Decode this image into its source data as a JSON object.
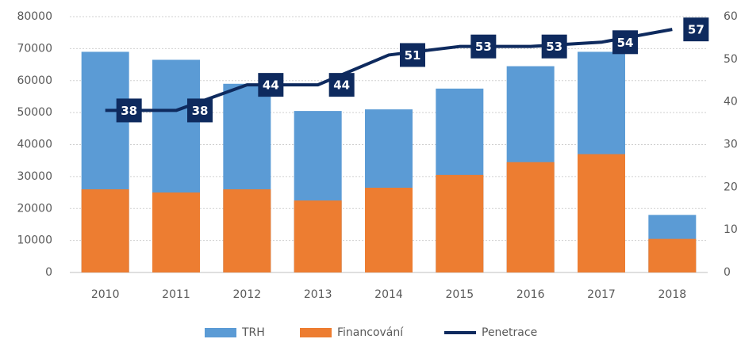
{
  "chart_data": {
    "type": "bar-line",
    "categories": [
      "2010",
      "2011",
      "2012",
      "2013",
      "2014",
      "2015",
      "2016",
      "2017",
      "2018"
    ],
    "series": [
      {
        "name": "TRH",
        "color": "#5b9bd5",
        "values": [
          69000,
          66500,
          59000,
          50500,
          51000,
          57500,
          64500,
          69000,
          18000
        ]
      },
      {
        "name": "Financování",
        "color": "#ed7d31",
        "values": [
          26000,
          25000,
          26000,
          22500,
          26500,
          30500,
          34500,
          37000,
          10500
        ]
      },
      {
        "name": "Penetrace",
        "color": "#0e2a5e",
        "axis": "y2",
        "type": "line",
        "values": [
          38,
          38,
          44,
          44,
          51,
          53,
          53,
          54,
          57
        ]
      }
    ],
    "ylim": [
      0,
      80000
    ],
    "yticks": [
      0,
      10000,
      20000,
      30000,
      40000,
      50000,
      60000,
      70000,
      80000
    ],
    "y2lim": [
      0,
      60
    ],
    "y2ticks": [
      0,
      10,
      20,
      30,
      40,
      50,
      60
    ],
    "grid": true,
    "legend": "bottom"
  }
}
